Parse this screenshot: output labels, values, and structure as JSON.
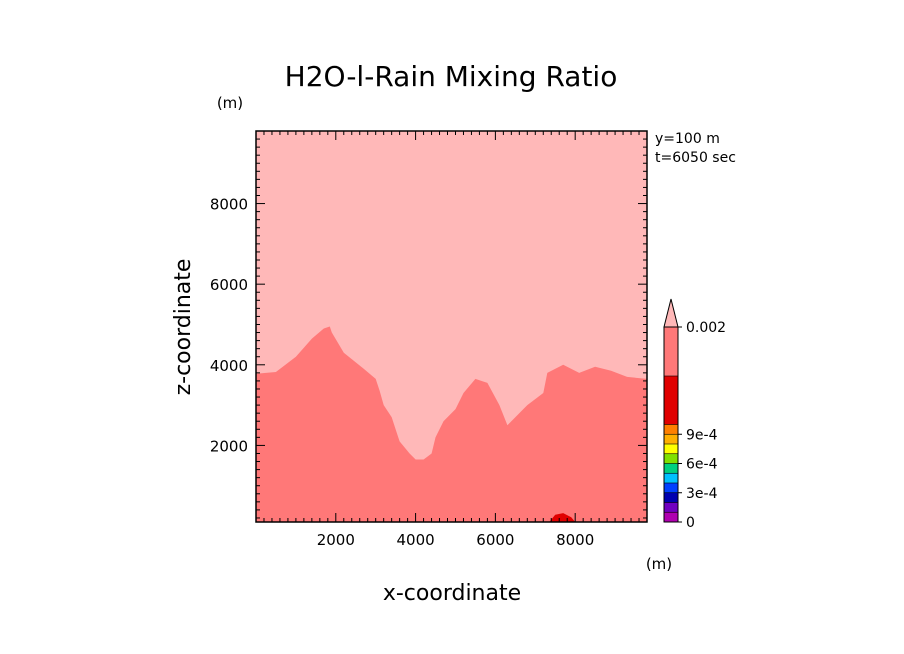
{
  "chart_data": {
    "type": "contour",
    "title": "H2O-l-Rain Mixing Ratio",
    "xlabel": "x-coordinate",
    "ylabel": "z-coordinate",
    "x_unit": "(m)",
    "y_unit": "(m)",
    "xlim": [
      0,
      9800
    ],
    "ylim": [
      100,
      9800
    ],
    "x_ticks": [
      "2000",
      "4000",
      "6000",
      "8000"
    ],
    "y_ticks": [
      "2000",
      "4000",
      "6000",
      "8000"
    ],
    "x_tick_values": [
      2000,
      4000,
      6000,
      8000
    ],
    "y_tick_values": [
      2000,
      4000,
      6000,
      8000
    ],
    "info": [
      "y=100 m",
      "t=6050 sec"
    ],
    "colorbar": {
      "labels": [
        "0.002",
        "9e-4",
        "6e-4",
        "3e-4",
        "0"
      ],
      "label_values": [
        0.002,
        0.0009,
        0.0006,
        0.0003,
        0
      ],
      "colors": [
        "#b000b0",
        "#7000c0",
        "#0000b0",
        "#0040ff",
        "#00c0ff",
        "#00d080",
        "#80e000",
        "#ffff00",
        "#ffb000",
        "#ff8000",
        "#e00000",
        "#ff7878",
        "#ffb8b8"
      ],
      "levels": [
        0,
        0.0001,
        0.0002,
        0.0003,
        0.0004,
        0.0005,
        0.0006,
        0.0007,
        0.0008,
        0.0009,
        0.001,
        0.0015,
        0.002
      ]
    },
    "regions": [
      {
        "level": "top",
        "color": "#ffb8b8",
        "description_points": []
      },
      {
        "level": "0.0015-0.002",
        "color": "#ff7878",
        "boundary": [
          [
            0,
            3780
          ],
          [
            500,
            3820
          ],
          [
            1000,
            4200
          ],
          [
            1400,
            4650
          ],
          [
            1700,
            4900
          ],
          [
            1850,
            4950
          ],
          [
            1900,
            4800
          ],
          [
            2200,
            4300
          ],
          [
            2700,
            3900
          ],
          [
            3000,
            3650
          ],
          [
            3100,
            3350
          ],
          [
            3200,
            3000
          ],
          [
            3400,
            2700
          ],
          [
            3500,
            2400
          ],
          [
            3600,
            2100
          ],
          [
            3850,
            1800
          ],
          [
            4000,
            1650
          ],
          [
            4200,
            1650
          ],
          [
            4400,
            1800
          ],
          [
            4500,
            2200
          ],
          [
            4700,
            2600
          ],
          [
            5000,
            2900
          ],
          [
            5200,
            3300
          ],
          [
            5500,
            3650
          ],
          [
            5800,
            3550
          ],
          [
            6100,
            3000
          ],
          [
            6300,
            2500
          ],
          [
            6500,
            2700
          ],
          [
            6800,
            3000
          ],
          [
            7200,
            3300
          ],
          [
            7300,
            3800
          ],
          [
            7700,
            4000
          ],
          [
            8100,
            3800
          ],
          [
            8500,
            3950
          ],
          [
            8900,
            3850
          ],
          [
            9300,
            3700
          ],
          [
            9800,
            3650
          ]
        ]
      },
      {
        "level": "0.001-0.0015",
        "color": "#e00000",
        "boundary": [
          [
            7350,
            100
          ],
          [
            7500,
            280
          ],
          [
            7700,
            320
          ],
          [
            7900,
            220
          ],
          [
            8000,
            100
          ]
        ]
      }
    ]
  }
}
